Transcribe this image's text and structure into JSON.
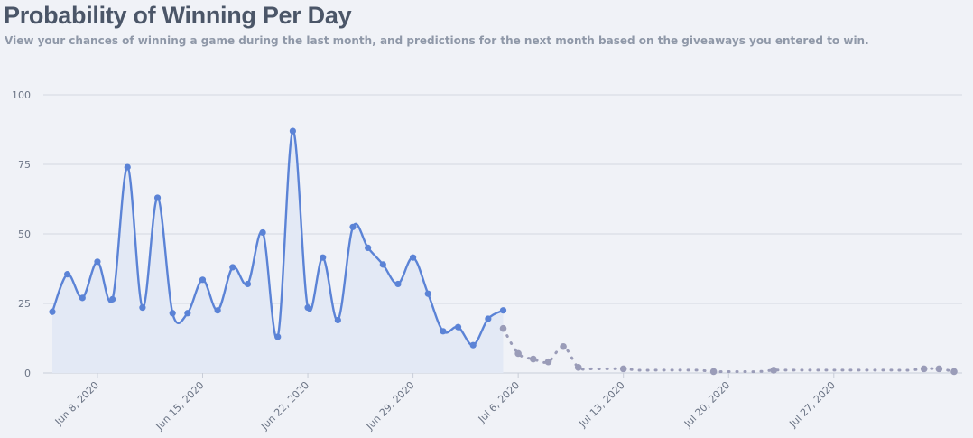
{
  "header": {
    "title": "Probability of Winning Per Day",
    "subtitle": "View your chances of winning a game during the last month, and predictions for the next month based on the giveaways you entered to win."
  },
  "chart_data": {
    "type": "line",
    "title": "Probability of Winning Per Day",
    "xlabel": "",
    "ylabel": "",
    "ylim": [
      0,
      100
    ],
    "y_ticks": [
      0,
      25,
      50,
      75,
      100
    ],
    "x_range": [
      "2020-06-05",
      "2020-08-04"
    ],
    "x_ticks": [
      "2020-06-08",
      "2020-06-15",
      "2020-06-22",
      "2020-06-29",
      "2020-07-06",
      "2020-07-13",
      "2020-07-20",
      "2020-07-27"
    ],
    "x_tick_labels": [
      "Jun 8, 2020",
      "Jun 15, 2020",
      "Jun 22, 2020",
      "Jun 29, 2020",
      "Jul 6, 2020",
      "Jul 13, 2020",
      "Jul 20, 2020",
      "Jul 27, 2020"
    ],
    "grid": true,
    "legend": "none",
    "series": [
      {
        "style": "solid-area",
        "color": "#5b83d6",
        "fill": "#e3e9f5",
        "x": [
          "2020-06-05",
          "2020-06-06",
          "2020-06-07",
          "2020-06-08",
          "2020-06-09",
          "2020-06-10",
          "2020-06-11",
          "2020-06-12",
          "2020-06-13",
          "2020-06-14",
          "2020-06-15",
          "2020-06-16",
          "2020-06-17",
          "2020-06-18",
          "2020-06-19",
          "2020-06-20",
          "2020-06-21",
          "2020-06-22",
          "2020-06-23",
          "2020-06-24",
          "2020-06-25",
          "2020-06-26",
          "2020-06-27",
          "2020-06-28",
          "2020-06-29",
          "2020-06-30",
          "2020-07-01",
          "2020-07-02",
          "2020-07-03",
          "2020-07-04",
          "2020-07-05"
        ],
        "values": [
          22,
          35.5,
          27,
          40,
          26.5,
          74,
          23.5,
          63,
          21.5,
          21.5,
          33.5,
          22.5,
          38,
          32,
          50.5,
          13,
          87,
          23.5,
          41.5,
          19,
          52.5,
          45,
          39,
          32,
          41.5,
          28.5,
          15,
          16.5,
          10,
          19.5,
          22.5
        ]
      },
      {
        "style": "dotted-prediction",
        "color": "#9a9cb8",
        "x": [
          "2020-07-05",
          "2020-07-06",
          "2020-07-07",
          "2020-07-08",
          "2020-07-09",
          "2020-07-10",
          "2020-07-11",
          "2020-07-12",
          "2020-07-13",
          "2020-07-14",
          "2020-07-15",
          "2020-07-16",
          "2020-07-17",
          "2020-07-18",
          "2020-07-19",
          "2020-07-20",
          "2020-07-21",
          "2020-07-22",
          "2020-07-23",
          "2020-07-24",
          "2020-07-25",
          "2020-07-26",
          "2020-07-27",
          "2020-07-28",
          "2020-07-29",
          "2020-07-30",
          "2020-07-31",
          "2020-08-01",
          "2020-08-02",
          "2020-08-03",
          "2020-08-04"
        ],
        "values": [
          16,
          7,
          5,
          4,
          9.5,
          2,
          1.5,
          1.5,
          1.5,
          1,
          1,
          1,
          1,
          1,
          0.5,
          0.5,
          0.5,
          0.5,
          1,
          1,
          1,
          1,
          1,
          1,
          1,
          1,
          1,
          1,
          1.5,
          1.5,
          0.5
        ],
        "marker_dates": [
          "2020-07-05",
          "2020-07-06",
          "2020-07-07",
          "2020-07-08",
          "2020-07-09",
          "2020-07-10",
          "2020-07-13",
          "2020-07-19",
          "2020-07-23",
          "2020-08-02",
          "2020-08-03",
          "2020-08-04"
        ]
      }
    ]
  }
}
